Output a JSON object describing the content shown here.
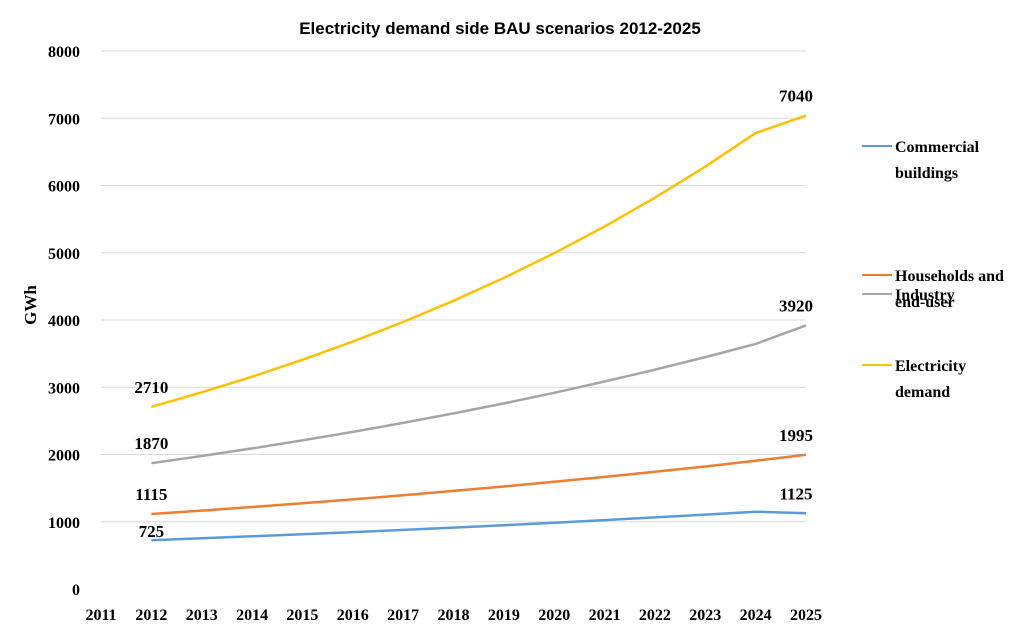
{
  "chart_data": {
    "type": "line",
    "title": "Electricity demand side BAU scenarios 2012-2025",
    "ylabel": "GWh",
    "xlabel": "",
    "ylim": [
      0,
      8000
    ],
    "yticks": [
      "0",
      "1000",
      "2000",
      "3000",
      "4000",
      "5000",
      "6000",
      "7000",
      "8000"
    ],
    "categories": [
      "2011",
      "2012",
      "2013",
      "2014",
      "2015",
      "2016",
      "2017",
      "2018",
      "2019",
      "2020",
      "2021",
      "2022",
      "2023",
      "2024",
      "2025"
    ],
    "grid": true,
    "legend_position": "right",
    "series": [
      {
        "name": "Commercial buildings",
        "color": "#5b9bd5",
        "values": [
          null,
          725,
          754,
          783,
          814,
          846,
          879,
          913,
          949,
          986,
          1024,
          1064,
          1106,
          1149,
          1125
        ],
        "labels": [
          {
            "x": "2012",
            "text": "725"
          },
          {
            "x": "2025",
            "text": "1125"
          }
        ]
      },
      {
        "name": "Households and end-user",
        "color": "#ed7d31",
        "values": [
          null,
          1115,
          1166,
          1219,
          1275,
          1333,
          1394,
          1458,
          1524,
          1594,
          1667,
          1743,
          1822,
          1906,
          1995
        ],
        "labels": [
          {
            "x": "2012",
            "text": "1115"
          },
          {
            "x": "2025",
            "text": "1995"
          }
        ]
      },
      {
        "name": "Industry",
        "color": "#a5a5a5",
        "values": [
          null,
          1870,
          1977,
          2090,
          2210,
          2336,
          2470,
          2611,
          2760,
          2918,
          3085,
          3261,
          3448,
          3645,
          3920
        ],
        "labels": [
          {
            "x": "2012",
            "text": "1870"
          },
          {
            "x": "2025",
            "text": "3920"
          }
        ]
      },
      {
        "name": "Electricity demand",
        "color": "#ffc000",
        "values": [
          null,
          2710,
          2925,
          3157,
          3408,
          3679,
          3971,
          4286,
          4626,
          4994,
          5390,
          5818,
          6280,
          6779,
          7040
        ],
        "labels": [
          {
            "x": "2012",
            "text": "2710"
          },
          {
            "x": "2025",
            "text": "7040"
          }
        ]
      }
    ],
    "legend": [
      {
        "lines": [
          "Commercial",
          "buildings"
        ],
        "color": "#5b9bd5"
      },
      {
        "lines": [
          "Households and",
          "end-user"
        ],
        "color": "#ed7d31"
      },
      {
        "lines": [
          "Industry"
        ],
        "color": "#a5a5a5"
      },
      {
        "lines": [
          "Electricity",
          "demand"
        ],
        "color": "#ffc000"
      }
    ]
  }
}
